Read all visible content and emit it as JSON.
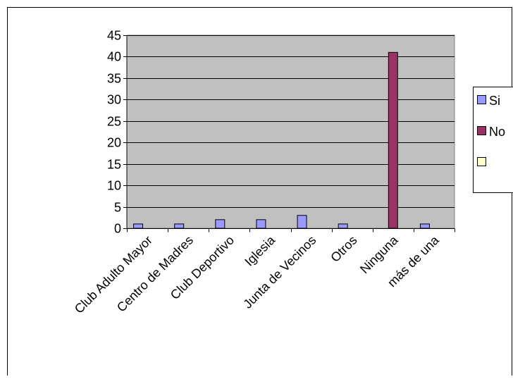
{
  "chart_data": {
    "type": "bar",
    "categories": [
      "Club Adulto Mayor",
      "Centro de Madres",
      "Club Deportivo",
      "Iglesia",
      "Junta de Vecinos",
      "Otros",
      "Ninguna",
      "más de una"
    ],
    "series": [
      {
        "name": "Si",
        "values": [
          1,
          1,
          2,
          2,
          3,
          1,
          null,
          1
        ],
        "color": "#9999ff"
      },
      {
        "name": "No",
        "values": [
          null,
          null,
          null,
          null,
          null,
          null,
          41,
          null
        ],
        "color": "#993366"
      },
      {
        "name": "",
        "values": [
          null,
          null,
          null,
          null,
          null,
          null,
          null,
          null
        ],
        "color": "#ffffcc"
      }
    ],
    "ylim": [
      0,
      45
    ],
    "yticks": [
      0,
      5,
      10,
      15,
      20,
      25,
      30,
      35,
      40,
      45
    ],
    "grid": true,
    "plot_background": "#c0c0c0",
    "legend_position": "right"
  }
}
